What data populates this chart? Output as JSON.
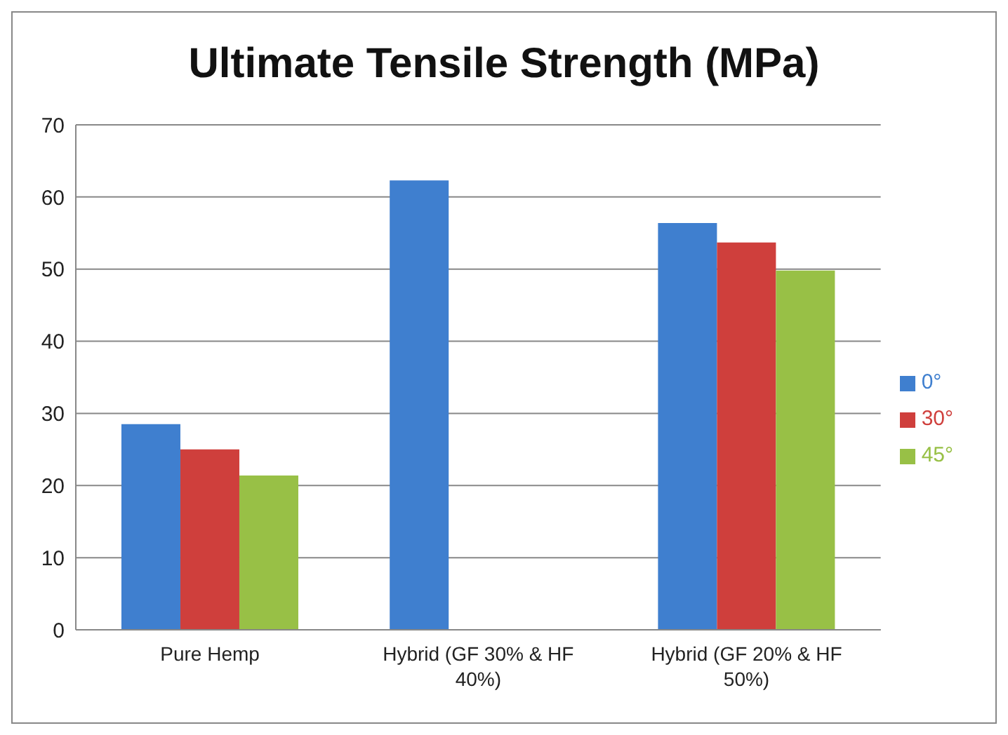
{
  "chart_data": {
    "type": "bar",
    "title": "Ultimate Tensile Strength (MPa)",
    "categories": [
      "Pure Hemp",
      "Hybrid (GF 30% & HF 40%)",
      "Hybrid (GF 20% & HF 50%)"
    ],
    "series": [
      {
        "name": "0°",
        "color": "#3f7fcf",
        "values": [
          28.5,
          62.3,
          56.4
        ]
      },
      {
        "name": "30°",
        "color": "#cf3f3c",
        "values": [
          25.0,
          null,
          53.7
        ]
      },
      {
        "name": "45°",
        "color": "#98c046",
        "values": [
          21.4,
          null,
          49.8
        ]
      }
    ],
    "ylim": [
      0,
      70
    ],
    "yticks": [
      0,
      10,
      20,
      30,
      40,
      50,
      60,
      70
    ],
    "grid": "y",
    "legend": "right"
  }
}
